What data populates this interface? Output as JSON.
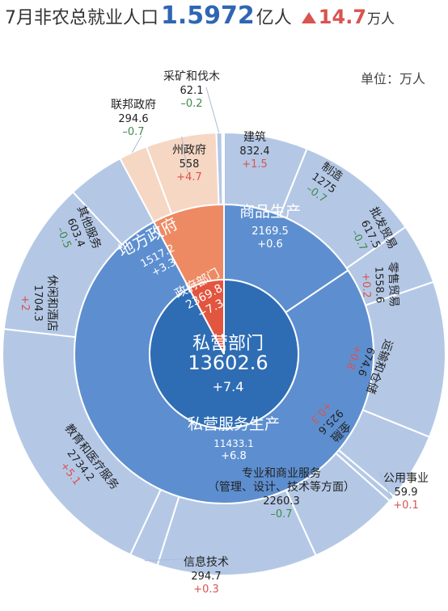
{
  "header": {
    "title": "7月非农总就业人口",
    "total_value": "1.5972",
    "total_unit": "亿人",
    "change_value": "14.7",
    "change_unit": "万人"
  },
  "unit_note": "单位：万人",
  "colors": {
    "private_dark": "#2e6db4",
    "private_mid": "#5d8fd0",
    "private_light": "#b4c8e6",
    "gov_dark": "#e2553e",
    "gov_mid": "#ee8a63",
    "gov_light": "#f6d7c4",
    "positive": "#d9534f",
    "negative": "#3f8a4c"
  },
  "chart_data": {
    "type": "sunburst",
    "center": {
      "label": "私营部门",
      "value": "13602.6",
      "change": "+7.4"
    },
    "government": {
      "label": "政府部门",
      "value": "2369.8",
      "change": "+7.3"
    },
    "middle_ring": [
      {
        "key": "gov_local",
        "label": "地方政府",
        "value": "1517.2",
        "change": "+3.3"
      },
      {
        "key": "goods",
        "label": "商品生产",
        "value": "2169.5",
        "change": "+0.6"
      },
      {
        "key": "services",
        "label": "私营服务生产",
        "value": "11433.1",
        "change": "+6.8"
      }
    ],
    "outer_ring": [
      {
        "key": "mining",
        "lines": [
          "采矿和伐木"
        ],
        "value": "62.1",
        "change": "–0.2"
      },
      {
        "key": "construction",
        "lines": [
          "建筑"
        ],
        "value": "832.4",
        "change": "+1.5"
      },
      {
        "key": "manufacturing",
        "lines": [
          "制造"
        ],
        "value": "1275",
        "change": "–0.7"
      },
      {
        "key": "wholesale",
        "lines": [
          "批发贸易"
        ],
        "value": "617.5",
        "change": "–0.7"
      },
      {
        "key": "retail",
        "lines": [
          "零售贸易"
        ],
        "value": "1558.6",
        "change": "+0.2"
      },
      {
        "key": "transport",
        "lines": [
          "运输和仓储"
        ],
        "value": "674.6",
        "change": "+0.8"
      },
      {
        "key": "utilities",
        "lines": [
          "公用事业"
        ],
        "value": "59.9",
        "change": "+0.1"
      },
      {
        "key": "finance",
        "lines": [
          "金融"
        ],
        "value": "925.6",
        "change": "+0.3"
      },
      {
        "key": "professional",
        "lines": [
          "专业和商业服务",
          "（管理、设计、技术等方面）"
        ],
        "value": "2260.3",
        "change": "–0.7"
      },
      {
        "key": "information",
        "lines": [
          "信息技术"
        ],
        "value": "294.7",
        "change": "+0.3"
      },
      {
        "key": "education_health",
        "lines": [
          "教育和医疗服务"
        ],
        "value": "2734.2",
        "change": "+5.1"
      },
      {
        "key": "leisure",
        "lines": [
          "休闲和酒店"
        ],
        "value": "1704.3",
        "change": "+2"
      },
      {
        "key": "other_services",
        "lines": [
          "其他服务"
        ],
        "value": "603.4",
        "change": "–0.5"
      },
      {
        "key": "federal",
        "lines": [
          "联邦政府"
        ],
        "value": "294.6",
        "change": "–0.7"
      },
      {
        "key": "state",
        "lines": [
          "州政府"
        ],
        "value": "558",
        "change": "+4.7"
      }
    ]
  }
}
